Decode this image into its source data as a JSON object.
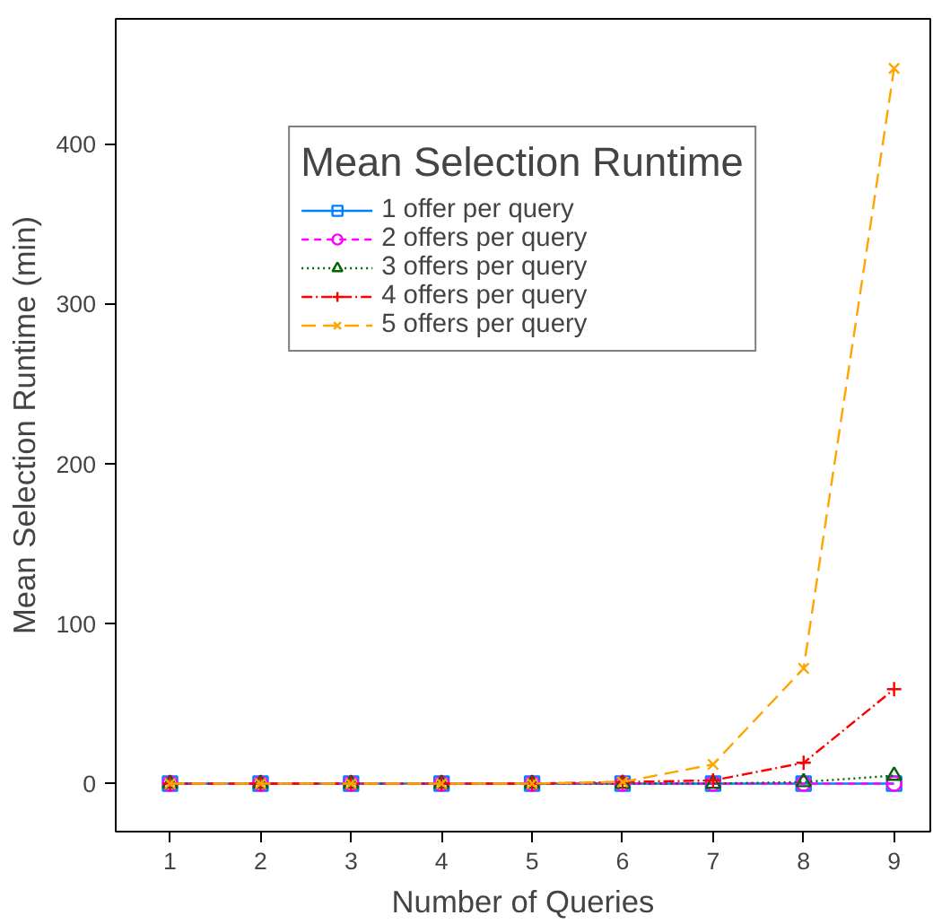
{
  "chart_data": {
    "type": "line",
    "xlabel": "Number of Queries",
    "ylabel": "Mean Selection Runtime (min)",
    "legend_title": "Mean Selection Runtime",
    "x": [
      1,
      2,
      3,
      4,
      5,
      6,
      7,
      8,
      9
    ],
    "series": [
      {
        "name": "1 offer per query",
        "color": "#0080ff",
        "marker": "square",
        "line_style": "solid",
        "values": [
          0,
          0,
          0,
          0,
          0,
          0,
          0,
          0,
          0
        ]
      },
      {
        "name": "2 offers per query",
        "color": "#ff00ff",
        "marker": "circle",
        "line_style": "dashed",
        "values": [
          0,
          0,
          0,
          0,
          0,
          0,
          0,
          0,
          0
        ]
      },
      {
        "name": "3 offers per query",
        "color": "#006400",
        "marker": "triangle",
        "line_style": "dotted",
        "values": [
          0,
          0,
          0,
          0,
          0,
          0,
          0,
          1,
          5
        ]
      },
      {
        "name": "4 offers per query",
        "color": "#ff0000",
        "marker": "cross",
        "line_style": "dashdot",
        "values": [
          0,
          0,
          0,
          0,
          0,
          1,
          2,
          13,
          59
        ]
      },
      {
        "name": "5 offers per query",
        "color": "#ffa500",
        "marker": "x",
        "line_style": "longdash",
        "values": [
          0,
          0,
          0,
          0,
          0,
          1,
          12,
          72,
          447
        ]
      }
    ],
    "xlim": [
      0.4,
      9.4
    ],
    "ylim": [
      -30,
      478
    ],
    "xticks": [
      1,
      2,
      3,
      4,
      5,
      6,
      7,
      8,
      9
    ],
    "yticks": [
      0,
      100,
      200,
      300,
      400
    ],
    "grid": false,
    "legend": "top"
  }
}
